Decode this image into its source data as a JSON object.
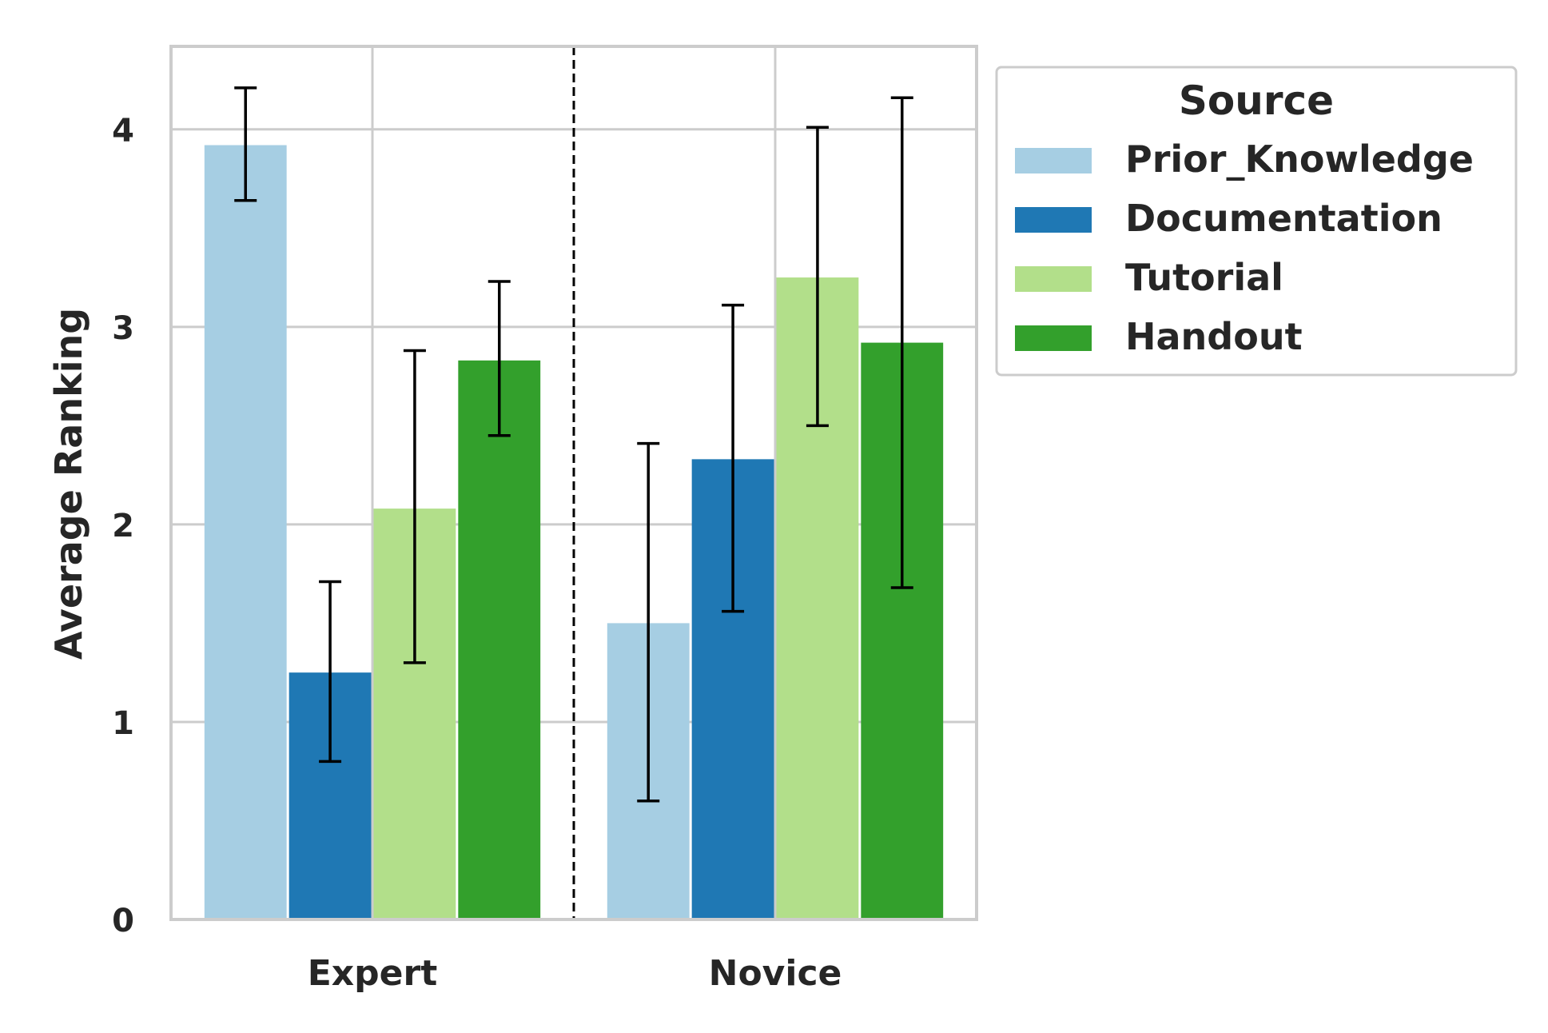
{
  "chart_data": {
    "type": "bar",
    "ylabel": "Average Ranking",
    "xlabel": "",
    "title": "",
    "categories": [
      "Expert",
      "Novice"
    ],
    "ylim": [
      0,
      4.42
    ],
    "yticks": [
      0,
      1,
      2,
      3,
      4
    ],
    "grid": true,
    "divider_between_categories": true,
    "legend": {
      "title": "Source",
      "placement": "outside-top-right"
    },
    "series": [
      {
        "name": "Prior_Knowledge",
        "color": "#a6cee3",
        "values": [
          3.92,
          1.5
        ],
        "error_low": [
          3.64,
          0.6
        ],
        "error_high": [
          4.21,
          2.41
        ]
      },
      {
        "name": "Documentation",
        "color": "#1f78b4",
        "values": [
          1.25,
          2.33
        ],
        "error_low": [
          0.8,
          1.56
        ],
        "error_high": [
          1.71,
          3.11
        ]
      },
      {
        "name": "Tutorial",
        "color": "#b2df8a",
        "values": [
          2.08,
          3.25
        ],
        "error_low": [
          1.3,
          2.5
        ],
        "error_high": [
          2.88,
          4.01
        ]
      },
      {
        "name": "Handout",
        "color": "#33a02c",
        "values": [
          2.83,
          2.92
        ],
        "error_low": [
          2.45,
          1.68
        ],
        "error_high": [
          3.23,
          4.16
        ]
      }
    ]
  }
}
